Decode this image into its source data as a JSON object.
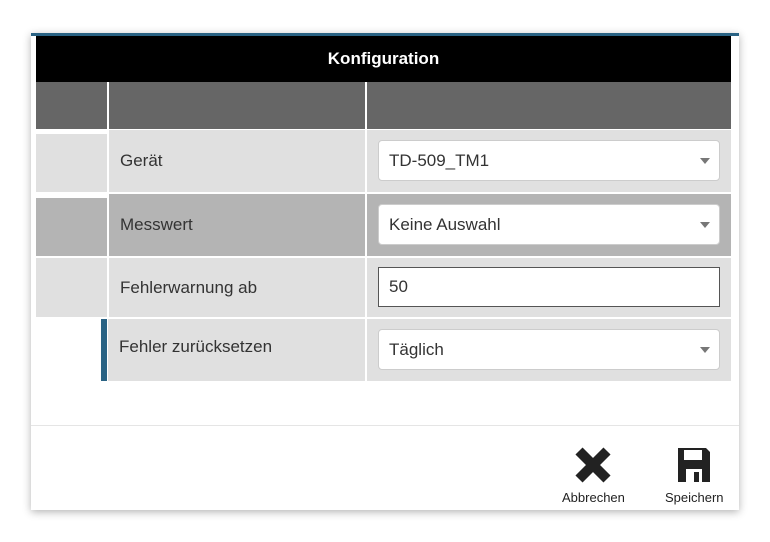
{
  "dialog": {
    "title": "Konfiguration",
    "accent": "#2a6384"
  },
  "rows": [
    {
      "label": "Gerät",
      "type": "select",
      "value": "TD-509_TM1"
    },
    {
      "label": "Messwert",
      "type": "select",
      "value": "Keine Auswahl"
    },
    {
      "label": "Fehlerwarnung ab",
      "type": "input",
      "value": "50"
    },
    {
      "label": "Fehler zurücksetzen",
      "type": "select",
      "value": "Täglich"
    }
  ],
  "footer": {
    "cancel_label": "Abbrechen",
    "cancel_icon": "close-icon",
    "save_label": "Speichern",
    "save_icon": "floppy-disk-icon"
  }
}
